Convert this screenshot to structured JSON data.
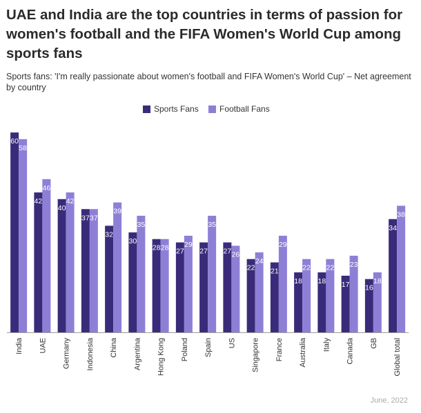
{
  "chart_data": {
    "type": "bar",
    "title": "UAE and India are the top countries in terms of passion for women's football and the FIFA Women's World Cup among sports fans",
    "subtitle": "Sports fans: 'I'm really passionate about women's football and FIFA Women's World Cup' – Net agreement by country",
    "categories": [
      "India",
      "UAE",
      "Germany",
      "Indonesia",
      "China",
      "Argentina",
      "Hong Kong",
      "Poland",
      "Spain",
      "US",
      "Singapore",
      "France",
      "Australia",
      "Italy",
      "Canada",
      "GB",
      "Global total"
    ],
    "series": [
      {
        "name": "Sports Fans",
        "color": "#3a2b7a",
        "values": [
          60,
          42,
          40,
          37,
          32,
          30,
          28,
          27,
          27,
          27,
          22,
          21,
          18,
          18,
          17,
          16,
          34
        ]
      },
      {
        "name": "Football Fans",
        "color": "#8e7fd6",
        "values": [
          58,
          46,
          42,
          37,
          39,
          35,
          28,
          29,
          35,
          26,
          24,
          29,
          22,
          22,
          23,
          18,
          38
        ]
      }
    ],
    "ylim": [
      0,
      65
    ],
    "legend": "top-center",
    "grid": false,
    "footer": "June, 2022"
  }
}
